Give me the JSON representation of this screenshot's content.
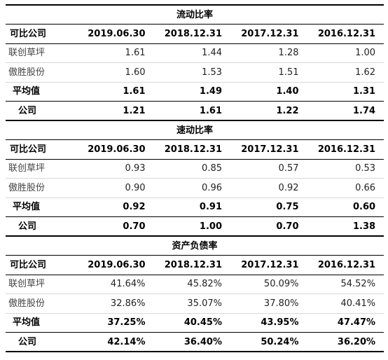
{
  "sections": [
    {
      "title": "流动比率",
      "header": [
        "可比公司",
        "2019.06.30",
        "2018.12.31",
        "2017.12.31",
        "2016.12.31"
      ],
      "rows": [
        {
          "name": "联创草坪",
          "values": [
            "1.61",
            "1.44",
            "1.28",
            "1.00"
          ]
        },
        {
          "name": "傲胜股份",
          "values": [
            "1.60",
            "1.53",
            "1.51",
            "1.62"
          ]
        },
        {
          "name": "平均值",
          "values": [
            "1.61",
            "1.49",
            "1.40",
            "1.31"
          ]
        },
        {
          "name": "公司",
          "values": [
            "1.21",
            "1.61",
            "1.22",
            "1.74"
          ]
        }
      ]
    },
    {
      "title": "速动比率",
      "header": [
        "可比公司",
        "2019.06.30",
        "2018.12.31",
        "2017.12.31",
        "2016.12.31"
      ],
      "rows": [
        {
          "name": "联创草坪",
          "values": [
            "0.93",
            "0.85",
            "0.57",
            "0.53"
          ]
        },
        {
          "name": "傲胜股份",
          "values": [
            "0.90",
            "0.96",
            "0.92",
            "0.66"
          ]
        },
        {
          "name": "平均值",
          "values": [
            "0.92",
            "0.91",
            "0.75",
            "0.60"
          ]
        },
        {
          "name": "公司",
          "values": [
            "0.70",
            "1.00",
            "0.70",
            "1.38"
          ]
        }
      ]
    },
    {
      "title": "资产负债率",
      "header": [
        "可比公司",
        "2019.06.30",
        "2018.12.31",
        "2017.12.31",
        "2016.12.31"
      ],
      "rows": [
        {
          "name": "联创草坪",
          "values": [
            "41.64%",
            "45.82%",
            "50.09%",
            "54.52%"
          ]
        },
        {
          "name": "傲胜股份",
          "values": [
            "32.86%",
            "35.07%",
            "37.80%",
            "40.41%"
          ]
        },
        {
          "name": "平均值",
          "values": [
            "37.25%",
            "40.45%",
            "43.95%",
            "47.47%"
          ]
        },
        {
          "name": "公司",
          "values": [
            "42.14%",
            "36.40%",
            "50.24%",
            "36.20%"
          ]
        }
      ]
    }
  ]
}
